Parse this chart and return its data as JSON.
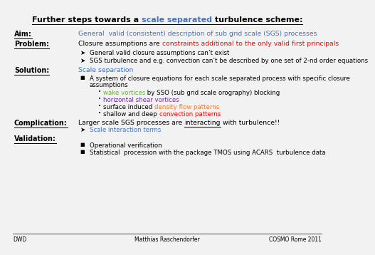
{
  "background_color": "#f2f2f2",
  "footer_left": "DWD",
  "footer_center": "Matthias Raschendorfer",
  "footer_right": "COSMO Rome 2011",
  "title_p1": "Further steps towards a ",
  "title_p2": "scale separated",
  "title_p3": " turbulence scheme:",
  "aim_label": "Aim:",
  "aim_text": "General  valid (consistent) description of sub grid scale (SGS) processes",
  "prob_label": "Problem:",
  "prob_p1": "Closure assumptions are ",
  "prob_p2": "constraints additional to the only valid first principals",
  "prob_b1": "General valid closure assumptions can’t exist",
  "prob_b2": "SGS turbulence and e.g. convection can’t be described by one set of 2-nd order equations",
  "sol_label": "Solution:",
  "sol_text": "Scale separation",
  "sol_b1a": "A system of closure equations for each scale separated process with specific closure",
  "sol_b1b": "assumptions",
  "sol_sub1a": "wake vortices",
  "sol_sub1b": " by SSO (sub grid scale orography) blocking",
  "sol_sub2": "horizontal shear vortices",
  "sol_sub3a": "surface induced ",
  "sol_sub3b": "density flow patterns",
  "sol_sub4a": "shallow and deep ",
  "sol_sub4b": "convection patterns",
  "comp_label": "Complication:",
  "comp_p1": "Larger scale SGS processes are ",
  "comp_p2": "interacting",
  "comp_p3": " with turbulence!!",
  "comp_b1": "Scale interaction terms",
  "val_label": "Validation:",
  "val_b1": "Operational verification",
  "val_b2": "Statistical  procession with the package TMOS using ACARS  turbulence data",
  "color_black": "#000000",
  "color_blue": "#4472c4",
  "color_red": "#ff0000",
  "color_green": "#70ad47",
  "color_purple": "#7030a0",
  "color_orange": "#ed7d31"
}
